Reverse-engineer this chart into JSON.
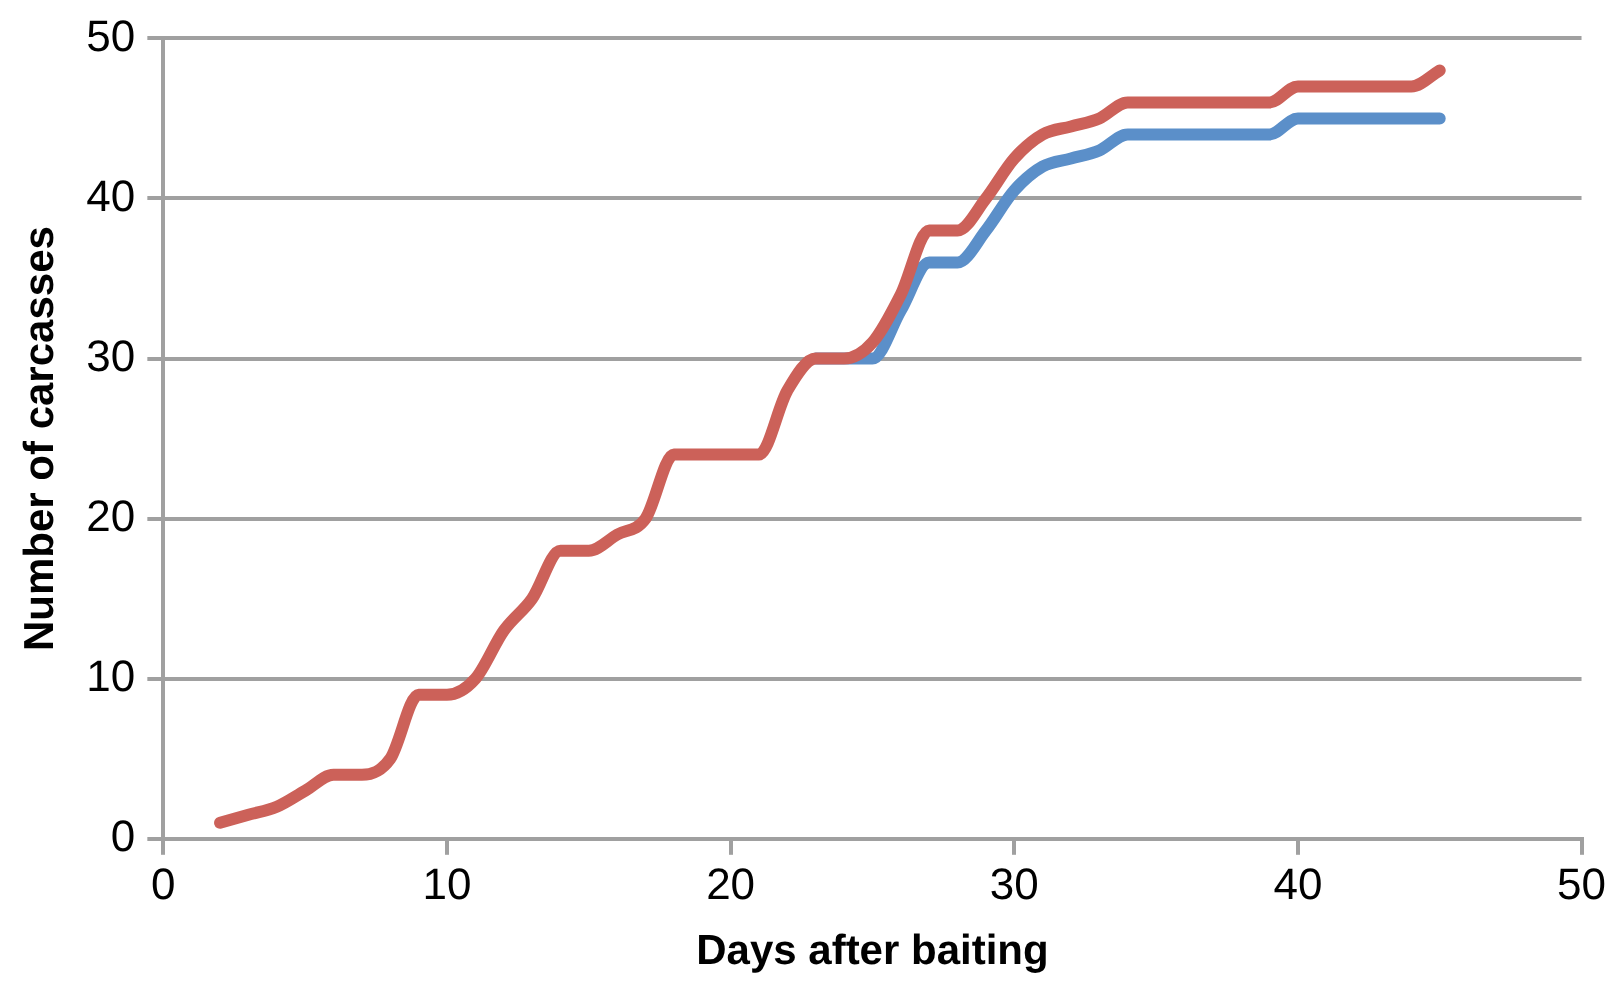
{
  "chart_data": {
    "type": "line",
    "xlabel": "Days after baiting",
    "ylabel": "Number of carcasses",
    "x": [
      2,
      3,
      4,
      5,
      6,
      7,
      8,
      9,
      10,
      11,
      12,
      13,
      14,
      15,
      16,
      17,
      18,
      19,
      20,
      21,
      22,
      23,
      24,
      25,
      26,
      27,
      28,
      29,
      30,
      31,
      32,
      33,
      34,
      35,
      36,
      37,
      38,
      39,
      40,
      41,
      42,
      43,
      44,
      45
    ],
    "series": [
      {
        "color": "#5b8fc9",
        "values": [
          null,
          null,
          null,
          null,
          null,
          null,
          null,
          null,
          null,
          null,
          null,
          null,
          null,
          null,
          null,
          null,
          null,
          null,
          null,
          null,
          null,
          30,
          30,
          30,
          33,
          36,
          36,
          38,
          40.5,
          42,
          42.5,
          43,
          44,
          44,
          44,
          44,
          44,
          44,
          45,
          45,
          45,
          45,
          45,
          45
        ]
      },
      {
        "color": "#cc6159",
        "values": [
          1,
          1.5,
          2,
          3,
          4,
          4,
          5,
          9,
          9,
          10,
          13,
          15,
          18,
          18,
          19,
          20,
          24,
          24,
          24,
          24,
          28,
          30,
          30,
          31,
          34,
          38,
          38,
          40,
          42.5,
          44,
          44.5,
          45,
          46,
          46,
          46,
          46,
          46,
          46,
          47,
          47,
          47,
          47,
          47,
          48
        ]
      }
    ],
    "xlim": [
      0,
      50
    ],
    "xticks": [
      0,
      10,
      20,
      30,
      40,
      50
    ],
    "ylim": [
      0,
      50
    ],
    "yticks": [
      0,
      10,
      20,
      30,
      40,
      50
    ],
    "grid": "y",
    "legend": false,
    "marker": "none",
    "line_style": "solid"
  }
}
